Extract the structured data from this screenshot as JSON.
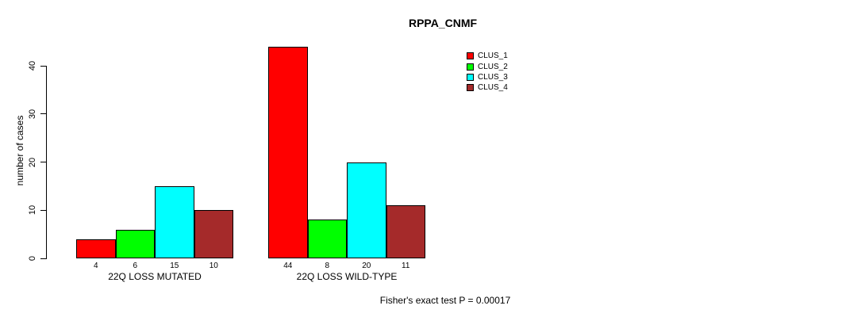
{
  "chart_data": {
    "type": "bar",
    "title": "RPPA_CNMF",
    "ylabel": "number of cases",
    "xlabel": "",
    "yticks": [
      0,
      10,
      20,
      30,
      40
    ],
    "ylim": [
      0,
      44
    ],
    "grid": false,
    "legend_position": "top-right",
    "categories": [
      "22Q LOSS MUTATED",
      "22Q LOSS WILD-TYPE"
    ],
    "series": [
      {
        "name": "CLUS_1",
        "color": "#ff0000",
        "values": [
          4,
          44
        ]
      },
      {
        "name": "CLUS_2",
        "color": "#00ff00",
        "values": [
          6,
          8
        ]
      },
      {
        "name": "CLUS_3",
        "color": "#00ffff",
        "values": [
          15,
          20
        ]
      },
      {
        "name": "CLUS_4",
        "color": "#a52a2a",
        "values": [
          10,
          11
        ]
      }
    ],
    "groups": [
      {
        "label": "22Q LOSS MUTATED",
        "values": [
          4,
          6,
          15,
          10
        ]
      },
      {
        "label": "22Q LOSS WILD-TYPE",
        "values": [
          44,
          8,
          20,
          11
        ]
      }
    ],
    "annotation": "Fisher's exact test P = 0.00017"
  },
  "colors": {
    "background": "#ffffff",
    "axis": "#000000",
    "text": "#000000"
  }
}
